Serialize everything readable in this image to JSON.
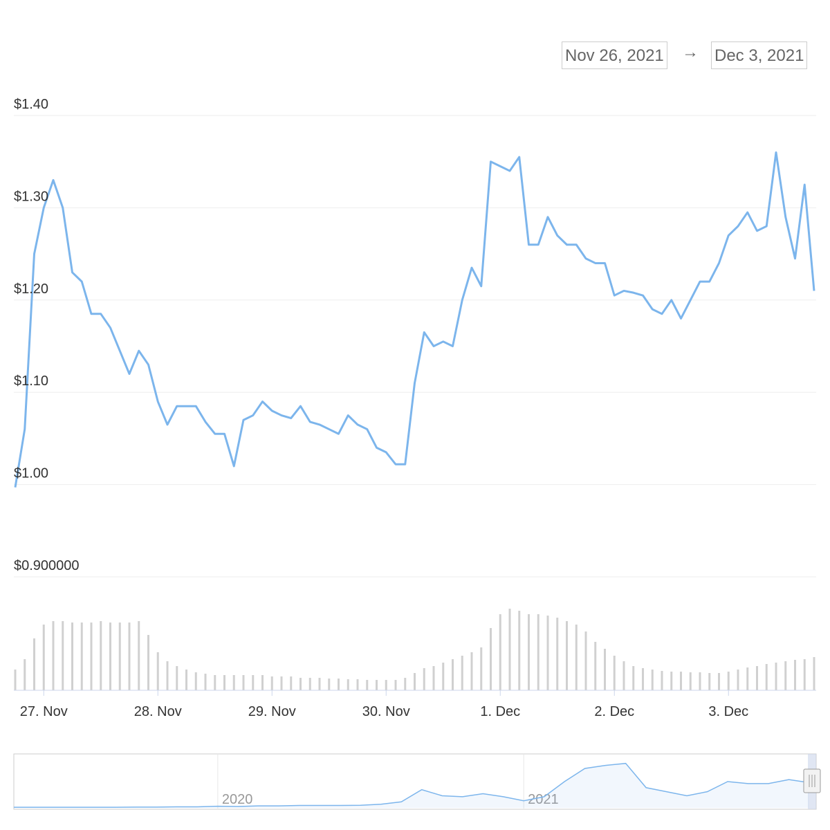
{
  "range": {
    "from": "Nov 26, 2021",
    "separator": "→",
    "to": "Dec 3, 2021"
  },
  "chart_data": {
    "type": "line",
    "color": "#7cb5ec",
    "ylim": [
      0.9,
      1.4
    ],
    "yticks": [
      {
        "value": 0.9,
        "label": "$0.900000"
      },
      {
        "value": 1.0,
        "label": "$1.00"
      },
      {
        "value": 1.1,
        "label": "$1.10"
      },
      {
        "value": 1.2,
        "label": "$1.20"
      },
      {
        "value": 1.3,
        "label": "$1.30"
      },
      {
        "value": 1.4,
        "label": "$1.40"
      }
    ],
    "xlim": [
      0,
      84
    ],
    "xticks": [
      {
        "value": 3,
        "label": "27. Nov"
      },
      {
        "value": 15,
        "label": "28. Nov"
      },
      {
        "value": 27,
        "label": "29. Nov"
      },
      {
        "value": 39,
        "label": "30. Nov"
      },
      {
        "value": 51,
        "label": "1. Dec"
      },
      {
        "value": 63,
        "label": "2. Dec"
      },
      {
        "value": 75,
        "label": "3. Dec"
      }
    ],
    "grid": true,
    "values": [
      0.997,
      1.06,
      1.25,
      1.3,
      1.33,
      1.3,
      1.23,
      1.22,
      1.185,
      1.185,
      1.17,
      1.145,
      1.12,
      1.145,
      1.13,
      1.09,
      1.065,
      1.085,
      1.085,
      1.085,
      1.068,
      1.055,
      1.055,
      1.02,
      1.07,
      1.075,
      1.09,
      1.08,
      1.075,
      1.072,
      1.085,
      1.068,
      1.065,
      1.06,
      1.055,
      1.075,
      1.065,
      1.06,
      1.04,
      1.035,
      1.022,
      1.022,
      1.11,
      1.165,
      1.15,
      1.155,
      1.15,
      1.2,
      1.235,
      1.215,
      1.35,
      1.345,
      1.34,
      1.355,
      1.26,
      1.26,
      1.29,
      1.27,
      1.26,
      1.26,
      1.245,
      1.24,
      1.24,
      1.205,
      1.21,
      1.208,
      1.205,
      1.19,
      1.185,
      1.2,
      1.18,
      1.2,
      1.22,
      1.22,
      1.24,
      1.27,
      1.28,
      1.295,
      1.275,
      1.28,
      1.36,
      1.29,
      1.245,
      1.325,
      1.21
    ],
    "volume": {
      "color": "#d0d0d0",
      "ylim": [
        0,
        130
      ],
      "values": [
        30,
        45,
        75,
        95,
        100,
        100,
        98,
        98,
        98,
        100,
        98,
        98,
        98,
        100,
        80,
        55,
        42,
        35,
        30,
        26,
        24,
        22,
        22,
        22,
        22,
        22,
        22,
        20,
        20,
        20,
        18,
        18,
        18,
        17,
        17,
        16,
        16,
        15,
        15,
        15,
        15,
        18,
        25,
        32,
        35,
        40,
        45,
        50,
        55,
        62,
        90,
        110,
        118,
        115,
        110,
        110,
        108,
        105,
        100,
        95,
        85,
        70,
        60,
        50,
        42,
        35,
        32,
        30,
        28,
        27,
        27,
        26,
        26,
        25,
        25,
        27,
        30,
        33,
        35,
        38,
        40,
        42,
        44,
        45,
        48
      ]
    },
    "navigator": {
      "color": "#7cb5ec",
      "ylim": [
        0,
        2.6
      ],
      "xlim": [
        0,
        39
      ],
      "xticks": [
        {
          "value": 10,
          "label": "2020"
        },
        {
          "value": 25,
          "label": "2021"
        }
      ],
      "values": [
        0.03,
        0.03,
        0.03,
        0.03,
        0.03,
        0.03,
        0.04,
        0.04,
        0.05,
        0.05,
        0.08,
        0.07,
        0.1,
        0.1,
        0.12,
        0.12,
        0.12,
        0.13,
        0.18,
        0.3,
        0.9,
        0.6,
        0.55,
        0.7,
        0.55,
        0.35,
        0.55,
        1.3,
        1.95,
        2.1,
        2.2,
        1.0,
        0.8,
        0.6,
        0.8,
        1.3,
        1.2,
        1.2,
        1.4,
        1.25
      ]
    }
  }
}
